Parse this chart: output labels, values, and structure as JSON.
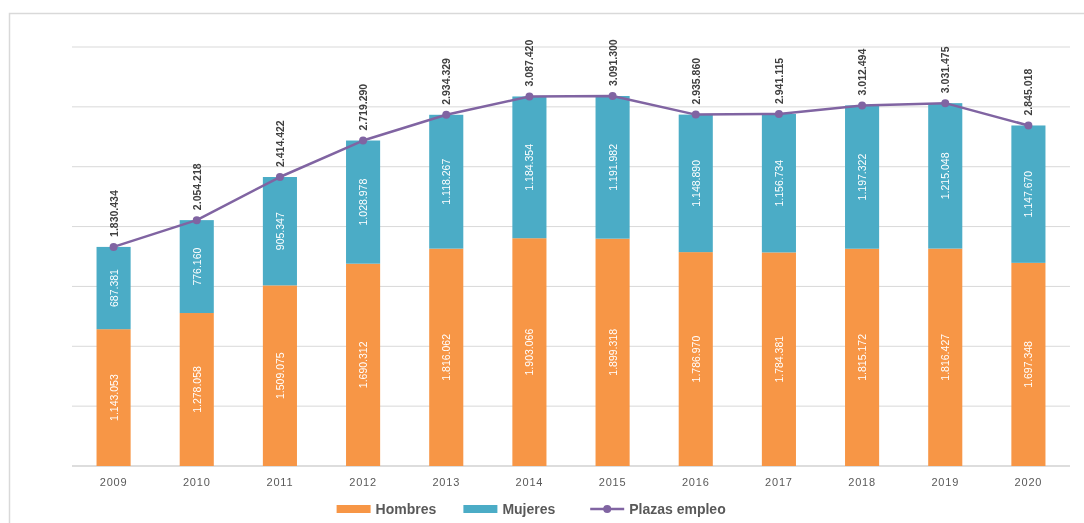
{
  "chart_data": {
    "type": "bar",
    "stacked": true,
    "categories": [
      "2009",
      "2010",
      "2011",
      "2012",
      "2013",
      "2014",
      "2015",
      "2016",
      "2017",
      "2018",
      "2019",
      "2020"
    ],
    "series": [
      {
        "name": "Hombres",
        "color": "#f79646",
        "values": [
          1143053,
          1278058,
          1509075,
          1690312,
          1816062,
          1903066,
          1899318,
          1786970,
          1784381,
          1815172,
          1816427,
          1697348
        ],
        "value_labels": [
          "1.143.053",
          "1.278.058",
          "1.509.075",
          "1.690.312",
          "1.816.062",
          "1.903.066",
          "1.899.318",
          "1.786.970",
          "1.784.381",
          "1.815.172",
          "1.816.427",
          "1.697.348"
        ]
      },
      {
        "name": "Mujeres",
        "color": "#4bacc6",
        "values": [
          687381,
          776160,
          905347,
          1028978,
          1118267,
          1184354,
          1191982,
          1148890,
          1156734,
          1197322,
          1215048,
          1147670
        ],
        "value_labels": [
          "687.381",
          "776.160",
          "905.347",
          "1.028.978",
          "1.118.267",
          "1.184.354",
          "1.191.982",
          "1.148.890",
          "1.156.734",
          "1.197.322",
          "1.215.048",
          "1.147.670"
        ]
      },
      {
        "name": "Plazas empleo",
        "type": "line",
        "color": "#8064a2",
        "values": [
          1830434,
          2054218,
          2414422,
          2719290,
          2934329,
          3087420,
          3091300,
          2935860,
          2941115,
          3012494,
          3031475,
          2845018
        ],
        "value_labels": [
          "1.830.434",
          "2.054.218",
          "2.414.422",
          "2.719.290",
          "2.934.329",
          "3.087.420",
          "3.091.300",
          "2.935.860",
          "2.941.115",
          "3.012.494",
          "3.031.475",
          "2.845.018"
        ]
      }
    ],
    "grid": "y",
    "tick_labels": "x",
    "legend": "bottom",
    "marker": "circle"
  }
}
